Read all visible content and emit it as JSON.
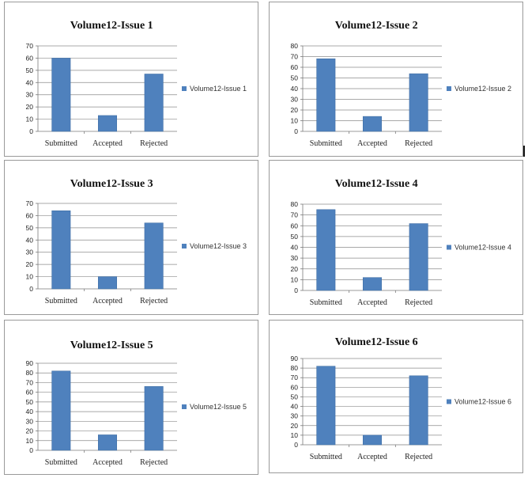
{
  "colors": {
    "bar": "#4f81bd",
    "grid": "#8c8c8c"
  },
  "chart_data": [
    {
      "type": "bar",
      "title": "Volume12-Issue 1",
      "categories": [
        "Submitted",
        "Accepted",
        "Rejected"
      ],
      "series": [
        {
          "name": "Volume12-Issue 1",
          "values": [
            60,
            13,
            47
          ]
        }
      ],
      "ylim": [
        0,
        70
      ],
      "ystep": 10,
      "legend": "right",
      "grid": true
    },
    {
      "type": "bar",
      "title": "Volume12-Issue 2",
      "categories": [
        "Submitted",
        "Accepted",
        "Rejected"
      ],
      "series": [
        {
          "name": "Volume12-Issue 2",
          "values": [
            68,
            14,
            54
          ]
        }
      ],
      "ylim": [
        0,
        80
      ],
      "ystep": 10,
      "legend": "right",
      "grid": true
    },
    {
      "type": "bar",
      "title": "Volume12-Issue 3",
      "categories": [
        "Submitted",
        "Accepted",
        "Rejected"
      ],
      "series": [
        {
          "name": "Volume12-Issue 3",
          "values": [
            64,
            10,
            54
          ]
        }
      ],
      "ylim": [
        0,
        70
      ],
      "ystep": 10,
      "legend": "right",
      "grid": true
    },
    {
      "type": "bar",
      "title": "Volume12-Issue 4",
      "categories": [
        "Submitted",
        "Accepted",
        "Rejected"
      ],
      "series": [
        {
          "name": "Volume12-Issue 4",
          "values": [
            75,
            12,
            62
          ]
        }
      ],
      "ylim": [
        0,
        80
      ],
      "ystep": 10,
      "legend": "right",
      "grid": true
    },
    {
      "type": "bar",
      "title": "Volume12-Issue 5",
      "categories": [
        "Submitted",
        "Accepted",
        "Rejected"
      ],
      "series": [
        {
          "name": "Volume12-Issue 5",
          "values": [
            82,
            16,
            66
          ]
        }
      ],
      "ylim": [
        0,
        90
      ],
      "ystep": 10,
      "legend": "right",
      "grid": true
    },
    {
      "type": "bar",
      "title": "Volume12-Issue 6",
      "categories": [
        "Submitted",
        "Accepted",
        "Rejected"
      ],
      "series": [
        {
          "name": "Volume12-Issue 6",
          "values": [
            82,
            10,
            72
          ]
        }
      ],
      "ylim": [
        0,
        90
      ],
      "ystep": 10,
      "legend": "right",
      "grid": true
    }
  ]
}
